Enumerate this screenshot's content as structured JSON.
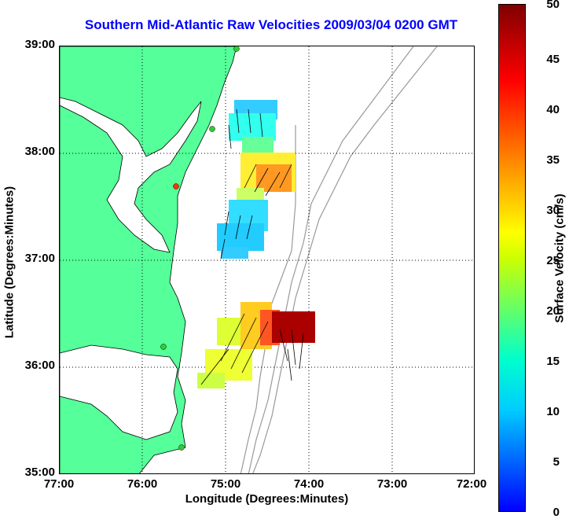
{
  "title": "Southern Mid-Atlantic Raw Velocities 2009/03/04 0200 GMT",
  "axes": {
    "x_label": "Longitude (Degrees:Minutes)",
    "y_label": "Latitude (Degrees:Minutes)",
    "x_ticks": [
      "77:00",
      "76:00",
      "75:00",
      "74:00",
      "73:00",
      "72:00"
    ],
    "y_ticks": [
      "39:00",
      "38:00",
      "37:00",
      "36:00",
      "35:00"
    ]
  },
  "colorbar": {
    "label": "Surface Velocity (cm/s)",
    "ticks": [
      "0",
      "5",
      "10",
      "15",
      "20",
      "25",
      "30",
      "35",
      "40",
      "45",
      "50"
    ],
    "min": 0,
    "max": 50
  },
  "colors": {
    "land": "#55ff99",
    "coast": "#000000",
    "bathymetry": "#999999",
    "title": "#0000ff",
    "grid": "#000000"
  },
  "stations": [
    {
      "color": "#33cc33"
    },
    {
      "color": "#33cc33"
    },
    {
      "color": "#ff3300"
    },
    {
      "color": "#33cc33"
    },
    {
      "color": "#33cc33"
    }
  ]
}
